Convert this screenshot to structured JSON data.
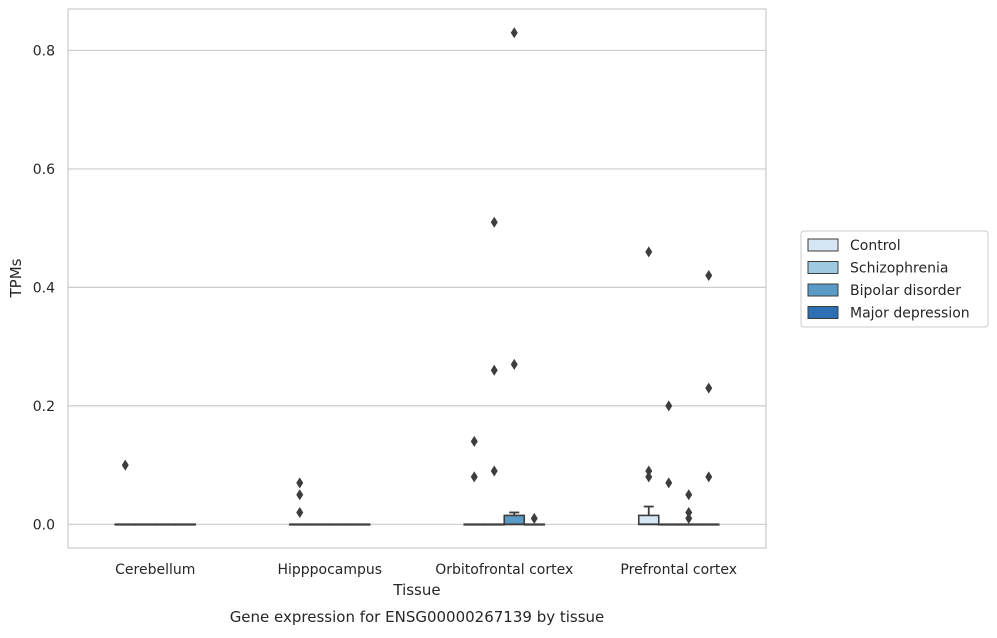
{
  "chart_data": {
    "type": "box",
    "title": "",
    "caption": "Gene expression for ENSG00000267139 by tissue",
    "xlabel": "Tissue",
    "ylabel": "TPMs",
    "ylim": [
      -0.04,
      0.87
    ],
    "yticks": [
      0.0,
      0.2,
      0.4,
      0.6,
      0.8
    ],
    "ytick_labels": [
      "0.0",
      "0.2",
      "0.4",
      "0.6",
      "0.8"
    ],
    "grid": "horizontal",
    "legend_position": "right",
    "categories": [
      "Cerebellum",
      "Hipppocampus",
      "Orbitofrontal cortex",
      "Prefrontal cortex"
    ],
    "series": [
      {
        "name": "Control",
        "color": "#d6e6f4",
        "boxes": [
          {
            "category": "Cerebellum",
            "q1": 0,
            "median": 0,
            "q3": 0,
            "whisker_low": 0,
            "whisker_high": 0,
            "outliers": [
              0.1
            ]
          },
          {
            "category": "Hipppocampus",
            "q1": 0,
            "median": 0,
            "q3": 0,
            "whisker_low": 0,
            "whisker_high": 0,
            "outliers": [
              0.02,
              0.05,
              0.07
            ]
          },
          {
            "category": "Orbitofrontal cortex",
            "q1": 0,
            "median": 0,
            "q3": 0,
            "whisker_low": 0,
            "whisker_high": 0,
            "outliers": [
              0.08,
              0.14
            ]
          },
          {
            "category": "Prefrontal cortex",
            "q1": 0,
            "median": 0,
            "q3": 0.015,
            "whisker_low": 0,
            "whisker_high": 0.03,
            "outliers": [
              0.08,
              0.09,
              0.46
            ]
          }
        ]
      },
      {
        "name": "Schizophrenia",
        "color": "#9ecae1",
        "boxes": [
          {
            "category": "Cerebellum",
            "q1": 0,
            "median": 0,
            "q3": 0,
            "whisker_low": 0,
            "whisker_high": 0,
            "outliers": []
          },
          {
            "category": "Hipppocampus",
            "q1": 0,
            "median": 0,
            "q3": 0,
            "whisker_low": 0,
            "whisker_high": 0,
            "outliers": []
          },
          {
            "category": "Orbitofrontal cortex",
            "q1": 0,
            "median": 0,
            "q3": 0,
            "whisker_low": 0,
            "whisker_high": 0,
            "outliers": [
              0.09,
              0.26,
              0.51
            ]
          },
          {
            "category": "Prefrontal cortex",
            "q1": 0,
            "median": 0,
            "q3": 0,
            "whisker_low": 0,
            "whisker_high": 0,
            "outliers": [
              0.07,
              0.2
            ]
          }
        ]
      },
      {
        "name": "Bipolar disorder",
        "color": "#5a9ac6",
        "boxes": [
          {
            "category": "Cerebellum",
            "q1": 0,
            "median": 0,
            "q3": 0,
            "whisker_low": 0,
            "whisker_high": 0,
            "outliers": []
          },
          {
            "category": "Hipppocampus",
            "q1": 0,
            "median": 0,
            "q3": 0,
            "whisker_low": 0,
            "whisker_high": 0,
            "outliers": []
          },
          {
            "category": "Orbitofrontal cortex",
            "q1": 0,
            "median": 0,
            "q3": 0.015,
            "whisker_low": 0,
            "whisker_high": 0.02,
            "outliers": [
              0.27,
              0.83
            ]
          },
          {
            "category": "Prefrontal cortex",
            "q1": 0,
            "median": 0,
            "q3": 0,
            "whisker_low": 0,
            "whisker_high": 0,
            "outliers": [
              0.01,
              0.02,
              0.05
            ]
          }
        ]
      },
      {
        "name": "Major depression",
        "color": "#2c70b3",
        "boxes": [
          {
            "category": "Cerebellum",
            "q1": 0,
            "median": 0,
            "q3": 0,
            "whisker_low": 0,
            "whisker_high": 0,
            "outliers": []
          },
          {
            "category": "Hipppocampus",
            "q1": 0,
            "median": 0,
            "q3": 0,
            "whisker_low": 0,
            "whisker_high": 0,
            "outliers": []
          },
          {
            "category": "Orbitofrontal cortex",
            "q1": 0,
            "median": 0,
            "q3": 0,
            "whisker_low": 0,
            "whisker_high": 0,
            "outliers": [
              0.01
            ]
          },
          {
            "category": "Prefrontal cortex",
            "q1": 0,
            "median": 0,
            "q3": 0,
            "whisker_low": 0,
            "whisker_high": 0,
            "outliers": [
              0.08,
              0.23,
              0.42
            ]
          }
        ]
      }
    ]
  }
}
